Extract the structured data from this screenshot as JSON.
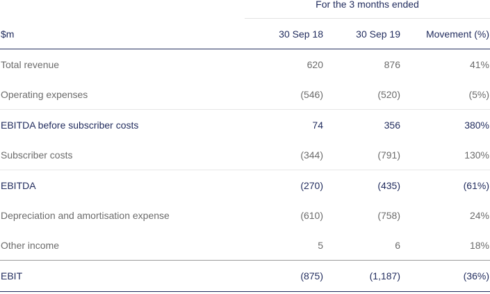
{
  "period_header": "For the 3 months ended",
  "columns": {
    "label": "$m",
    "col_a": "30 Sep 18",
    "col_b": "30 Sep 19",
    "col_c": "Movement (%)"
  },
  "rows": [
    {
      "label": "Total revenue",
      "a": "620",
      "b": "876",
      "c": "41%"
    },
    {
      "label": "Operating expenses",
      "a": "(546)",
      "b": "(520)",
      "c": "(5%)"
    },
    {
      "label": "EBITDA before subscriber costs",
      "a": "74",
      "b": "356",
      "c": "380%"
    },
    {
      "label": "Subscriber costs",
      "a": "(344)",
      "b": "(791)",
      "c": "130%"
    },
    {
      "label": "EBITDA",
      "a": "(270)",
      "b": "(435)",
      "c": "(61%)"
    },
    {
      "label": "Depreciation and amortisation expense",
      "a": "(610)",
      "b": "(758)",
      "c": "24%"
    },
    {
      "label": "Other income",
      "a": "5",
      "b": "6",
      "c": "18%"
    },
    {
      "label": "EBIT",
      "a": "(875)",
      "b": "(1,187)",
      "c": "(36%)"
    }
  ],
  "colors": {
    "navy": "#1f2a5c",
    "grey_text": "#6b6b6b"
  }
}
